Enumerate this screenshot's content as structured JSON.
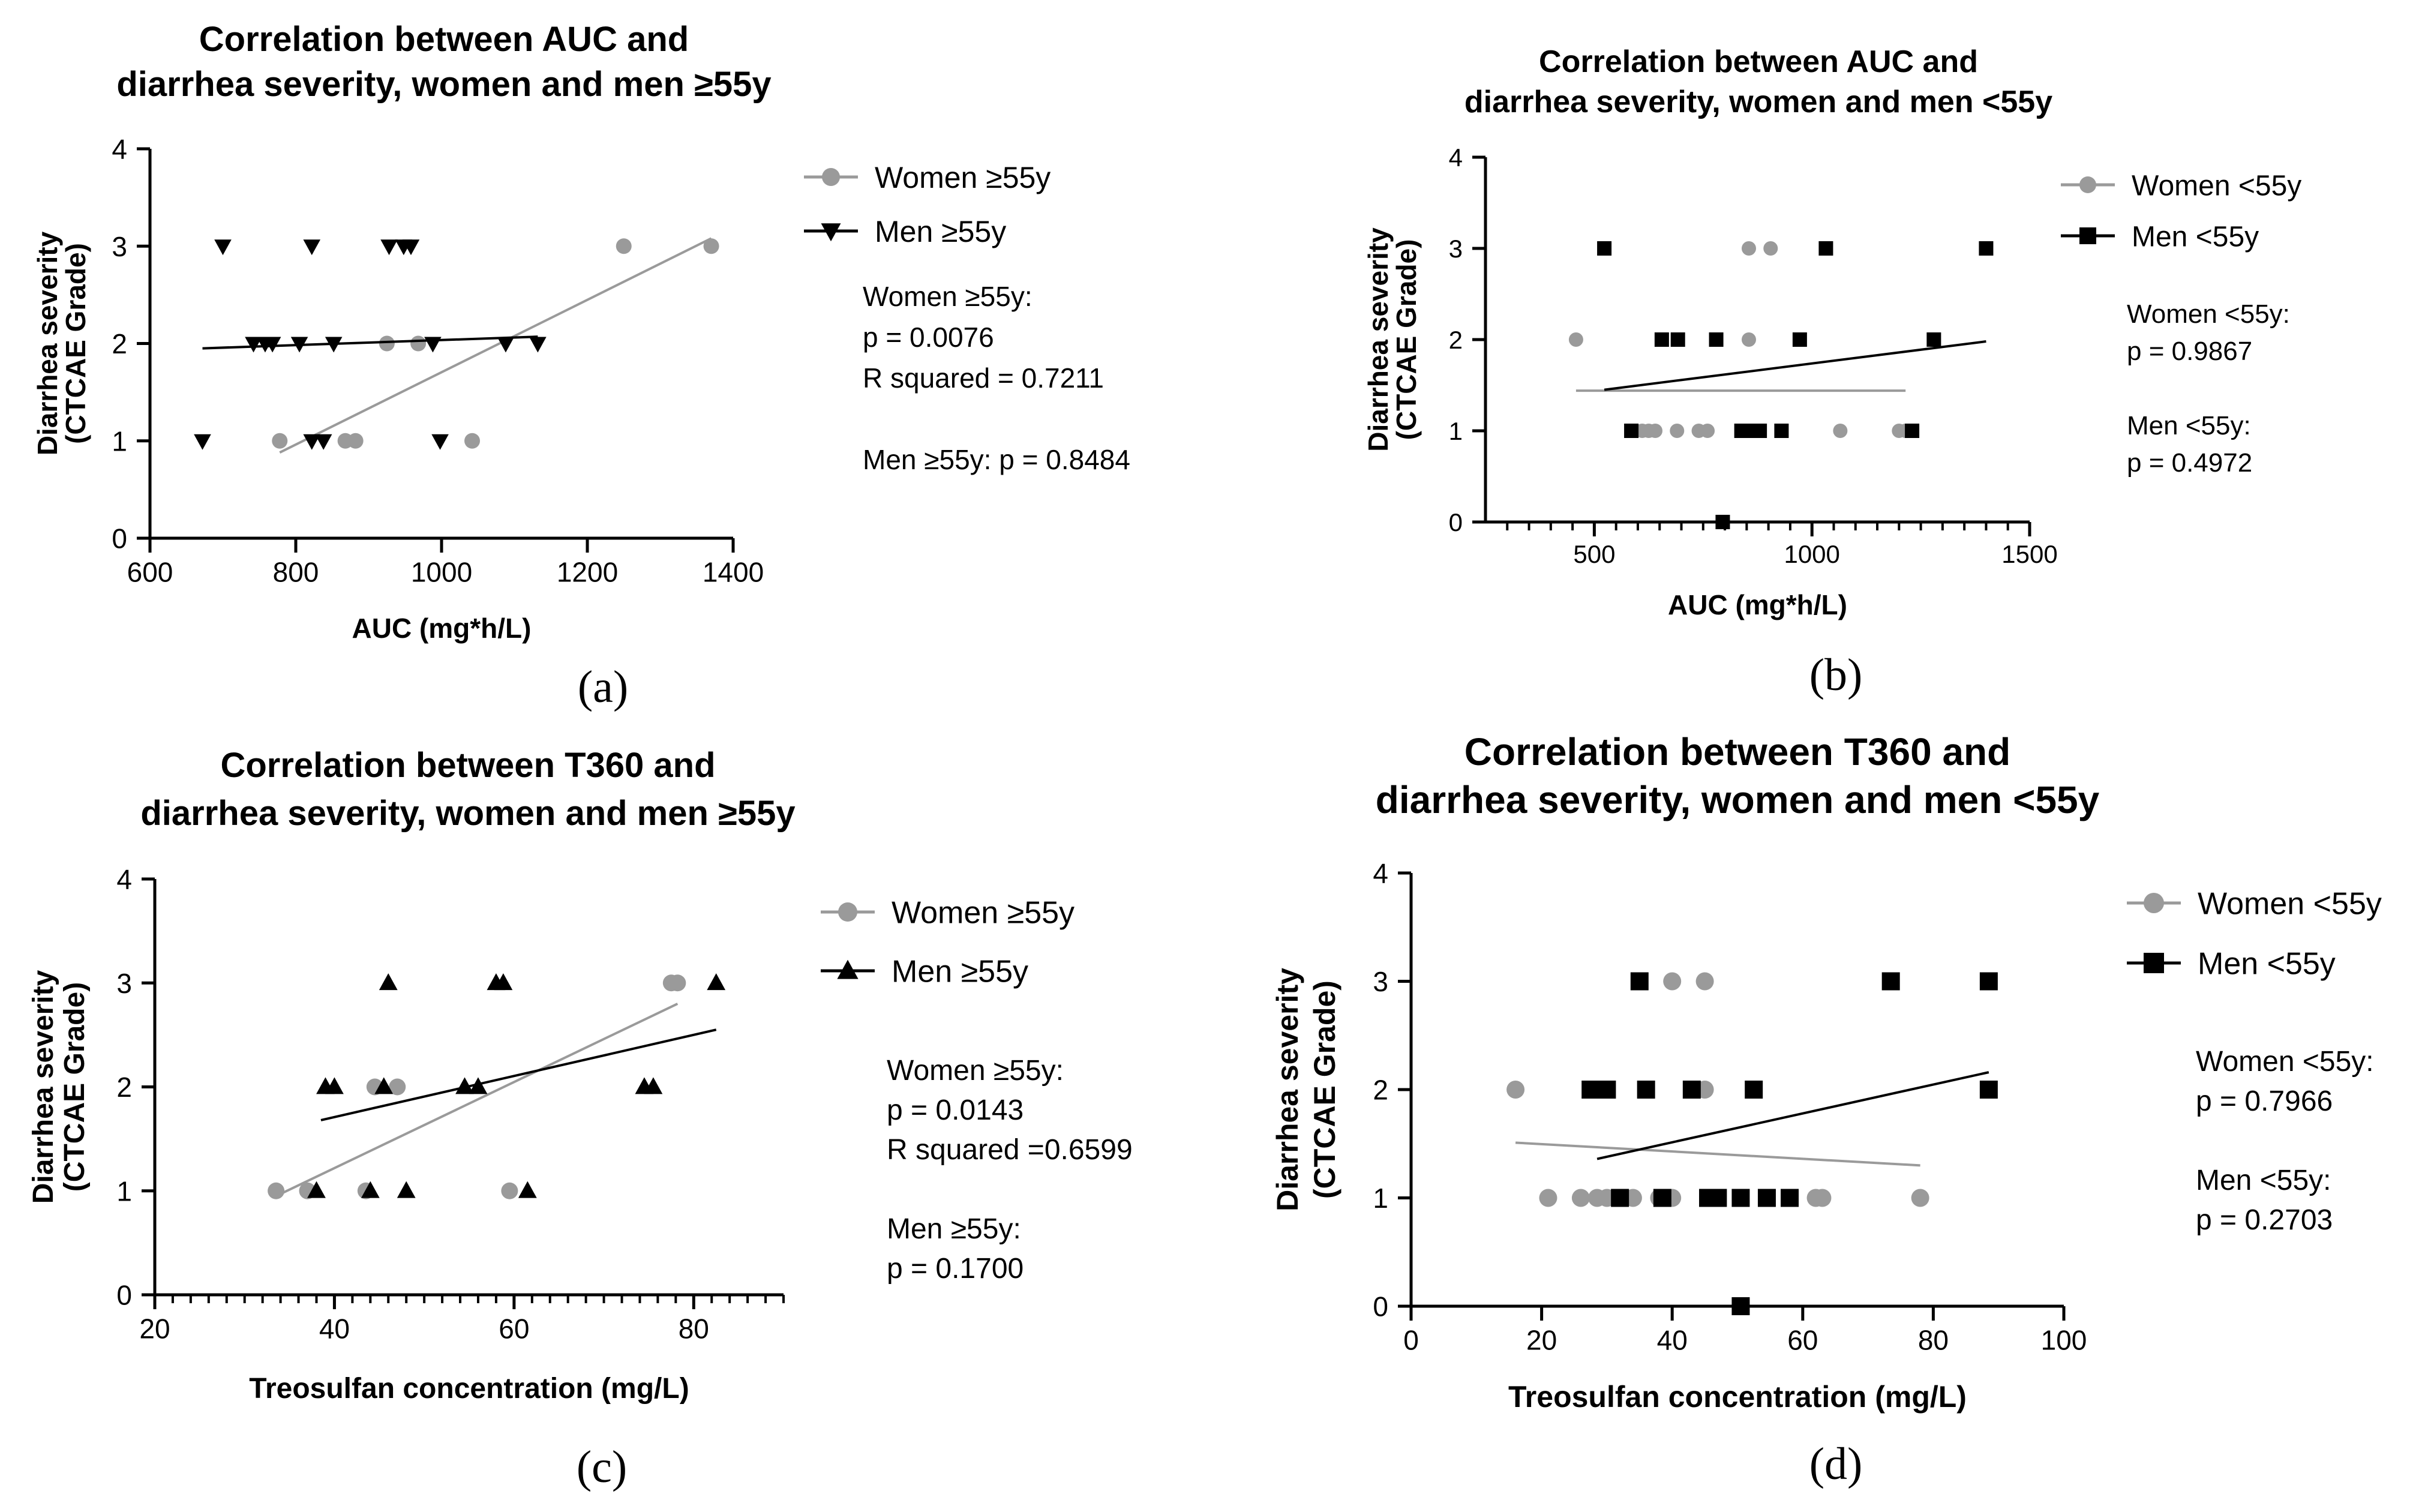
{
  "colors": {
    "women": "#9a9a9a",
    "men": "#000000",
    "axis": "#000000",
    "background": "#ffffff"
  },
  "chart_data": [
    {
      "panel": "(a)",
      "type": "scatter",
      "title": [
        "Correlation between AUC and",
        "diarrhea severity, women and men ≥55y"
      ],
      "xlabel": "AUC (mg*h/L)",
      "ylabel": [
        "Diarrhea severity",
        "(CTCAE Grade)"
      ],
      "xlim": [
        600,
        1400
      ],
      "ylim": [
        0,
        4
      ],
      "xticks": [
        600,
        800,
        1000,
        1200,
        1400
      ],
      "yticks": [
        0,
        1,
        2,
        3,
        4
      ],
      "xminor": [],
      "series": [
        {
          "name": "Women ≥55y",
          "color": "#9a9a9a",
          "marker": "circle",
          "points": [
            [
              778,
              1
            ],
            [
              868,
              1
            ],
            [
              882,
              1
            ],
            [
              925,
              2
            ],
            [
              968,
              2
            ],
            [
              1042,
              1
            ],
            [
              1250,
              3
            ],
            [
              1370,
              3
            ]
          ],
          "fit": [
            [
              778,
              0.88
            ],
            [
              1370,
              3.08
            ]
          ]
        },
        {
          "name": "Men ≥55y",
          "color": "#000000",
          "marker": "triangle-down",
          "points": [
            [
              672,
              1
            ],
            [
              700,
              3
            ],
            [
              742,
              2
            ],
            [
              758,
              2
            ],
            [
              768,
              2
            ],
            [
              805,
              2
            ],
            [
              822,
              3
            ],
            [
              822,
              1
            ],
            [
              838,
              1
            ],
            [
              852,
              2
            ],
            [
              928,
              3
            ],
            [
              948,
              3
            ],
            [
              958,
              3
            ],
            [
              988,
              2
            ],
            [
              998,
              1
            ],
            [
              1088,
              2
            ],
            [
              1132,
              2
            ]
          ],
          "fit": [
            [
              672,
              1.95
            ],
            [
              1132,
              2.07
            ]
          ]
        }
      ],
      "stats": [
        "Women ≥55y:",
        "p = 0.0076",
        "R squared = 0.7211",
        "",
        "Men ≥55y: p = 0.8484"
      ]
    },
    {
      "panel": "(b)",
      "type": "scatter",
      "title": [
        "Correlation between AUC and",
        "diarrhea severity, women and men <55y"
      ],
      "xlabel": "AUC (mg*h/L)",
      "ylabel": [
        "Diarrhea severity",
        "(CTCAE Grade)"
      ],
      "xlim": [
        250,
        1500
      ],
      "ylim": [
        0,
        4
      ],
      "xticks": [
        500,
        1000,
        1500
      ],
      "yticks": [
        0,
        1,
        2,
        3,
        4
      ],
      "xminor": [
        300,
        350,
        400,
        450,
        550,
        600,
        650,
        700,
        750,
        800,
        850,
        900,
        950,
        1050,
        1100,
        1150,
        1200,
        1250,
        1300,
        1350,
        1400,
        1450
      ],
      "series": [
        {
          "name": "Women <55y",
          "color": "#9a9a9a",
          "marker": "circle",
          "points": [
            [
              458,
              2
            ],
            [
              595,
              1
            ],
            [
              610,
              1
            ],
            [
              625,
              1
            ],
            [
              640,
              1
            ],
            [
              690,
              1
            ],
            [
              740,
              1
            ],
            [
              760,
              1
            ],
            [
              855,
              3
            ],
            [
              855,
              2
            ],
            [
              905,
              3
            ],
            [
              880,
              1
            ],
            [
              1065,
              1
            ],
            [
              1200,
              1
            ],
            [
              1215,
              1
            ]
          ],
          "fit": [
            [
              458,
              1.44
            ],
            [
              1215,
              1.44
            ]
          ]
        },
        {
          "name": "Men <55y",
          "color": "#000000",
          "marker": "square",
          "points": [
            [
              523,
              3
            ],
            [
              585,
              1
            ],
            [
              655,
              2
            ],
            [
              692,
              2
            ],
            [
              780,
              2
            ],
            [
              795,
              0
            ],
            [
              838,
              1
            ],
            [
              858,
              1
            ],
            [
              880,
              1
            ],
            [
              930,
              1
            ],
            [
              972,
              2
            ],
            [
              1032,
              3
            ],
            [
              1230,
              1
            ],
            [
              1280,
              2
            ],
            [
              1400,
              3
            ]
          ],
          "fit": [
            [
              523,
              1.45
            ],
            [
              1400,
              1.98
            ]
          ]
        }
      ],
      "stats": [
        "Women <55y:",
        "p = 0.9867",
        "",
        "Men <55y:",
        "p = 0.4972"
      ]
    },
    {
      "panel": "(c)",
      "type": "scatter",
      "title": [
        "Correlation between T360 and",
        "diarrhea severity, women and men ≥55y"
      ],
      "xlabel": "Treosulfan concentration (mg/L)",
      "ylabel": [
        "Diarrhea severity",
        "(CTCAE Grade)"
      ],
      "xlim": [
        20,
        90
      ],
      "ylim": [
        0,
        4
      ],
      "xticks": [
        20,
        40,
        60,
        80
      ],
      "yticks": [
        0,
        1,
        2,
        3,
        4
      ],
      "xminor": [
        22,
        24,
        26,
        28,
        30,
        32,
        34,
        36,
        38,
        42,
        44,
        46,
        48,
        50,
        52,
        54,
        56,
        58,
        62,
        64,
        66,
        68,
        70,
        72,
        74,
        76,
        78,
        82,
        84,
        86,
        88,
        90
      ],
      "series": [
        {
          "name": "Women ≥55y",
          "color": "#9a9a9a",
          "marker": "circle",
          "points": [
            [
              33.5,
              1
            ],
            [
              37,
              1
            ],
            [
              43.5,
              1
            ],
            [
              44.5,
              2
            ],
            [
              47,
              2
            ],
            [
              59.5,
              1
            ],
            [
              77.5,
              3
            ],
            [
              78.2,
              3
            ]
          ],
          "fit": [
            [
              33.5,
              0.95
            ],
            [
              78.2,
              2.8
            ]
          ]
        },
        {
          "name": "Men ≥55y",
          "color": "#000000",
          "marker": "triangle-up",
          "points": [
            [
              38,
              1
            ],
            [
              39,
              2
            ],
            [
              40,
              2
            ],
            [
              44,
              1
            ],
            [
              45.5,
              2
            ],
            [
              46,
              3
            ],
            [
              48,
              1
            ],
            [
              54.5,
              2
            ],
            [
              56,
              2
            ],
            [
              58,
              3
            ],
            [
              58.8,
              3
            ],
            [
              61.5,
              1
            ],
            [
              74.5,
              2
            ],
            [
              75.5,
              2
            ],
            [
              82.5,
              3
            ]
          ],
          "fit": [
            [
              38.5,
              1.68
            ],
            [
              82.5,
              2.55
            ]
          ]
        }
      ],
      "stats": [
        "Women ≥55y:",
        "p = 0.0143",
        "R squared =0.6599",
        "",
        "Men ≥55y:",
        "p = 0.1700"
      ]
    },
    {
      "panel": "(d)",
      "type": "scatter",
      "title": [
        "Correlation between T360 and",
        "diarrhea severity, women and men <55y"
      ],
      "xlabel": "Treosulfan concentration (mg/L)",
      "ylabel": [
        "Diarrhea severity",
        "(CTCAE Grade)"
      ],
      "xlim": [
        0,
        100
      ],
      "ylim": [
        0,
        4
      ],
      "xticks": [
        0,
        20,
        40,
        60,
        80,
        100
      ],
      "yticks": [
        0,
        1,
        2,
        3,
        4
      ],
      "xminor": [],
      "series": [
        {
          "name": "Women <55y",
          "color": "#9a9a9a",
          "marker": "circle",
          "points": [
            [
              16,
              2
            ],
            [
              21,
              1
            ],
            [
              26,
              1
            ],
            [
              28.5,
              1
            ],
            [
              30,
              1
            ],
            [
              34,
              1
            ],
            [
              38,
              1
            ],
            [
              40,
              3
            ],
            [
              40,
              1
            ],
            [
              45,
              3
            ],
            [
              45,
              2
            ],
            [
              62,
              1
            ],
            [
              63,
              1
            ],
            [
              78,
              1
            ]
          ],
          "fit": [
            [
              16,
              1.51
            ],
            [
              78,
              1.3
            ]
          ]
        },
        {
          "name": "Men <55y",
          "color": "#000000",
          "marker": "square",
          "points": [
            [
              27.5,
              2
            ],
            [
              29,
              2
            ],
            [
              30,
              2
            ],
            [
              32,
              1
            ],
            [
              35,
              3
            ],
            [
              36,
              2
            ],
            [
              38.5,
              1
            ],
            [
              43,
              2
            ],
            [
              45.5,
              1
            ],
            [
              46.5,
              1
            ],
            [
              47,
              1
            ],
            [
              50.5,
              0
            ],
            [
              50.5,
              1
            ],
            [
              52.5,
              2
            ],
            [
              54.5,
              1
            ],
            [
              58,
              1
            ],
            [
              73.5,
              3
            ],
            [
              88.5,
              3
            ],
            [
              88.5,
              2
            ]
          ],
          "fit": [
            [
              28.5,
              1.36
            ],
            [
              88.5,
              2.16
            ]
          ]
        }
      ],
      "stats": [
        "Women <55y:",
        "p = 0.7966",
        "",
        "Men <55y:",
        "p = 0.2703"
      ]
    }
  ]
}
